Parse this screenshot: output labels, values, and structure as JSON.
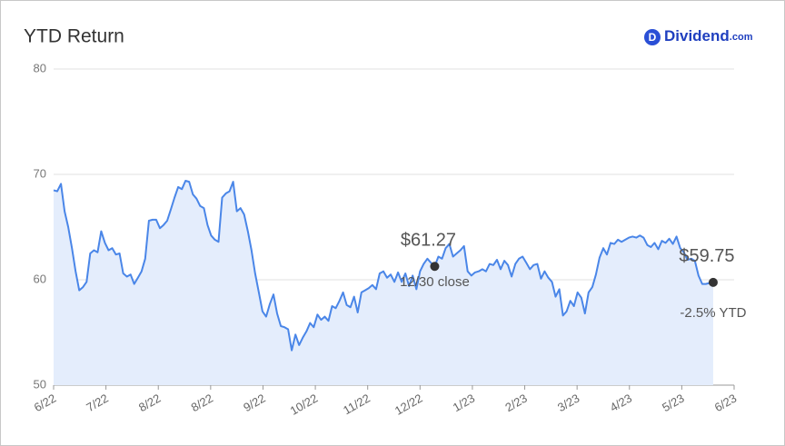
{
  "brand": {
    "icon": "D",
    "name": "Dividend",
    "suffix": ".com"
  },
  "chart_data": {
    "type": "line",
    "title": "YTD Return",
    "x": [
      0,
      0.07,
      0.14,
      0.21,
      0.28,
      0.35,
      0.42,
      0.49,
      0.56,
      0.63,
      0.7,
      0.77,
      0.84,
      0.91,
      0.98,
      1.05,
      1.12,
      1.19,
      1.26,
      1.33,
      1.4,
      1.47,
      1.54,
      1.61,
      1.68,
      1.75,
      1.82,
      1.89,
      1.96,
      2.03,
      2.1,
      2.17,
      2.24,
      2.31,
      2.38,
      2.45,
      2.52,
      2.59,
      2.66,
      2.73,
      2.8,
      2.87,
      2.94,
      3.01,
      3.08,
      3.15,
      3.22,
      3.29,
      3.36,
      3.43,
      3.5,
      3.57,
      3.64,
      3.71,
      3.78,
      3.85,
      3.92,
      3.99,
      4.06,
      4.13,
      4.2,
      4.27,
      4.34,
      4.41,
      4.48,
      4.55,
      4.62,
      4.69,
      4.76,
      4.83,
      4.9,
      4.97,
      5.04,
      5.11,
      5.18,
      5.25,
      5.32,
      5.39,
      5.46,
      5.53,
      5.6,
      5.67,
      5.74,
      5.81,
      5.88,
      5.95,
      6.02,
      6.09,
      6.16,
      6.23,
      6.3,
      6.37,
      6.44,
      6.51,
      6.58,
      6.65,
      6.72,
      6.79,
      6.86,
      6.93,
      7,
      7.07,
      7.14,
      7.21,
      7.28,
      7.35,
      7.42,
      7.49,
      7.56,
      7.63,
      7.7,
      7.77,
      7.84,
      7.91,
      7.98,
      8.05,
      8.12,
      8.19,
      8.26,
      8.33,
      8.4,
      8.47,
      8.54,
      8.61,
      8.68,
      8.75,
      8.82,
      8.89,
      8.96,
      9.03,
      9.1,
      9.17,
      9.24,
      9.31,
      9.38,
      9.45,
      9.52,
      9.59,
      9.66,
      9.73,
      9.8,
      9.87,
      9.94,
      10.01,
      10.08,
      10.15,
      10.22,
      10.29,
      10.36,
      10.43,
      10.5,
      10.57,
      10.64,
      10.71,
      10.78,
      10.85,
      10.92,
      10.99,
      11.06,
      11.13,
      11.2,
      11.27,
      11.34,
      11.41,
      11.48,
      11.55,
      11.62,
      11.69,
      11.76,
      11.83,
      11.9,
      11.97,
      12.04,
      12.11,
      12.18,
      12.25,
      12.32,
      12.39,
      12.46,
      12.53,
      12.6
    ],
    "series": [
      {
        "color": "#4a86e8",
        "fill": "#e4edfc",
        "values": [
          68.5,
          68.4,
          69.1,
          66.5,
          65,
          63,
          60.8,
          59,
          59.3,
          59.8,
          62.5,
          62.8,
          62.6,
          64.6,
          63.5,
          62.8,
          63,
          62.4,
          62.5,
          60.6,
          60.3,
          60.5,
          59.6,
          60.2,
          60.8,
          62,
          65.6,
          65.7,
          65.7,
          64.9,
          65.2,
          65.6,
          66.7,
          67.8,
          68.8,
          68.6,
          69.4,
          69.3,
          68.1,
          67.7,
          67,
          66.8,
          65.2,
          64.2,
          63.8,
          63.6,
          67.8,
          68.2,
          68.4,
          69.3,
          66.5,
          66.8,
          66.2,
          64.6,
          62.8,
          60.6,
          58.8,
          57,
          56.5,
          57.7,
          58.6,
          56.8,
          55.6,
          55.5,
          55.3,
          53.3,
          54.8,
          53.8,
          54.5,
          55.1,
          55.9,
          55.5,
          56.7,
          56.2,
          56.5,
          56.1,
          57.5,
          57.3,
          58,
          58.8,
          57.6,
          57.4,
          58.4,
          56.9,
          58.8,
          59,
          59.2,
          59.5,
          59.1,
          60.6,
          60.8,
          60.2,
          60.5,
          59.8,
          60.7,
          59.8,
          60.6,
          59.4,
          60.4,
          59.1,
          60.8,
          61.5,
          62,
          61.6,
          61.27,
          62.2,
          62,
          63,
          63.4,
          62.2,
          62.5,
          62.8,
          63.2,
          60.8,
          60.4,
          60.7,
          60.8,
          61,
          60.8,
          61.5,
          61.4,
          61.9,
          61,
          61.8,
          61.4,
          60.3,
          61.5,
          62,
          62.2,
          61.6,
          61,
          61.4,
          61.5,
          60.1,
          60.8,
          60.2,
          59.8,
          58.4,
          59.1,
          56.6,
          57,
          58,
          57.5,
          58.8,
          58.3,
          56.8,
          58.8,
          59.3,
          60.5,
          62.1,
          63,
          62.4,
          63.5,
          63.4,
          63.8,
          63.6,
          63.8,
          64,
          64.1,
          64,
          64.2,
          64,
          63.3,
          63.1,
          63.5,
          62.9,
          63.7,
          63.5,
          63.9,
          63.4,
          64.1,
          63,
          62.6,
          61.9,
          62,
          61.8,
          60.4,
          59.6,
          59.6,
          59.7,
          59.75
        ]
      }
    ],
    "xlim": [
      0,
      13
    ],
    "xticks": [
      {
        "value": 0,
        "label": "6/22"
      },
      {
        "value": 1,
        "label": "7/22"
      },
      {
        "value": 2,
        "label": "8/22"
      },
      {
        "value": 3,
        "label": "8/22"
      },
      {
        "value": 4,
        "label": "9/22"
      },
      {
        "value": 5,
        "label": "10/22"
      },
      {
        "value": 6,
        "label": "11/22"
      },
      {
        "value": 7,
        "label": "12/22"
      },
      {
        "value": 8,
        "label": "1/23"
      },
      {
        "value": 9,
        "label": "2/23"
      },
      {
        "value": 10,
        "label": "3/23"
      },
      {
        "value": 11,
        "label": "4/23"
      },
      {
        "value": 12,
        "label": "5/23"
      },
      {
        "value": 13,
        "label": "6/23"
      }
    ],
    "ylim": [
      50,
      80
    ],
    "yticks": [
      50,
      60,
      70,
      80
    ],
    "grid": true,
    "annotations": [
      {
        "x": 7.28,
        "y": 61.27,
        "label": "$61.27",
        "note": "12/30 close"
      },
      {
        "x": 12.6,
        "y": 59.75,
        "label": "$59.75",
        "note": "-2.5% YTD"
      }
    ]
  }
}
